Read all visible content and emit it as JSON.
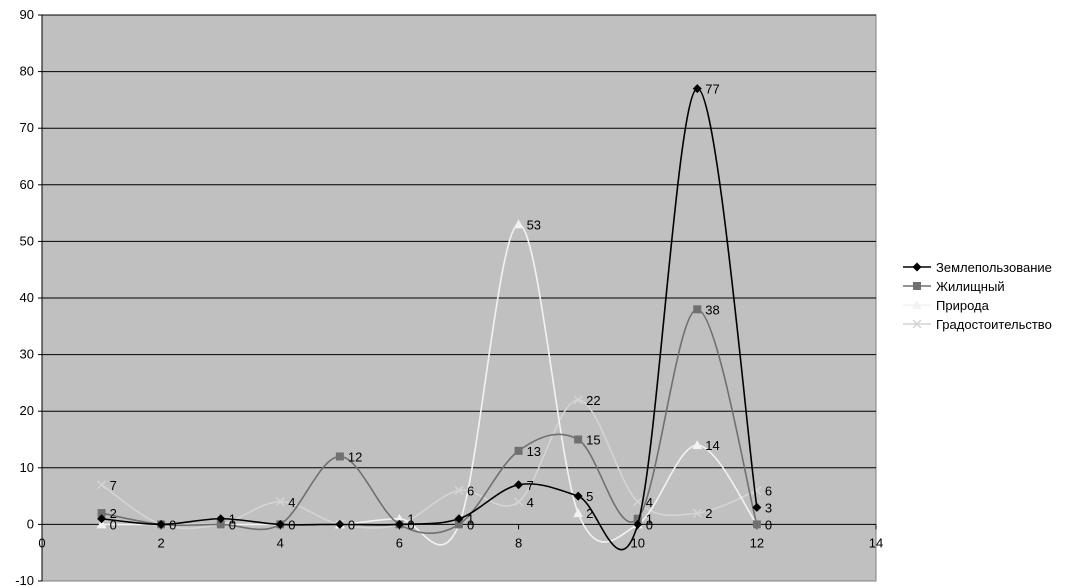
{
  "chart_data": {
    "type": "scatter",
    "xlim": [
      0,
      14
    ],
    "ylim": [
      -10,
      90
    ],
    "xticks": [
      0,
      2,
      4,
      6,
      8,
      10,
      12,
      14
    ],
    "yticks": [
      -10,
      0,
      10,
      20,
      30,
      40,
      50,
      60,
      70,
      80,
      90
    ],
    "grid": "horizontal",
    "legend": "right",
    "plot_background": "#c0c0c0",
    "series": [
      {
        "name": "Землепользование",
        "color": "#000000",
        "marker": "diamond",
        "x": [
          1,
          2,
          3,
          4,
          5,
          6,
          7,
          8,
          9,
          10,
          11,
          12
        ],
        "y": [
          1,
          0,
          1,
          0,
          0,
          0,
          1,
          7,
          5,
          0,
          77,
          3
        ]
      },
      {
        "name": "Жилищный",
        "color": "#707070",
        "marker": "square",
        "x": [
          1,
          2,
          3,
          4,
          5,
          6,
          7,
          8,
          9,
          10,
          11,
          12
        ],
        "y": [
          2,
          0,
          0,
          0,
          12,
          0,
          0,
          13,
          15,
          1,
          38,
          0
        ]
      },
      {
        "name": "Природа",
        "color": "#f2f2f2",
        "marker": "triangle",
        "x": [
          1,
          2,
          3,
          4,
          5,
          6,
          7,
          8,
          9,
          10,
          11,
          12
        ],
        "y": [
          0,
          0,
          0,
          0,
          0,
          1,
          0,
          53,
          2,
          0,
          14,
          0
        ]
      },
      {
        "name": "Градостоительство",
        "color": "#d4d4d4",
        "marker": "x",
        "x": [
          1,
          2,
          3,
          4,
          5,
          6,
          7,
          8,
          9,
          10,
          11,
          12
        ],
        "y": [
          7,
          0,
          0,
          4,
          0,
          0,
          6,
          4,
          22,
          4,
          2,
          6
        ]
      }
    ],
    "data_labels": [
      {
        "x": 1,
        "y": 7,
        "text": "7"
      },
      {
        "x": 1,
        "y": 2,
        "text": "2"
      },
      {
        "x": 1,
        "y": 0,
        "text": "0"
      },
      {
        "x": 2,
        "y": 0,
        "text": "0"
      },
      {
        "x": 3,
        "y": 1,
        "text": "1"
      },
      {
        "x": 3,
        "y": 0,
        "text": "0"
      },
      {
        "x": 4,
        "y": 4,
        "text": "4"
      },
      {
        "x": 4,
        "y": 0,
        "text": "0"
      },
      {
        "x": 5,
        "y": 12,
        "text": "12"
      },
      {
        "x": 5,
        "y": 0,
        "text": "0"
      },
      {
        "x": 6,
        "y": 1,
        "text": "1"
      },
      {
        "x": 6,
        "y": 0,
        "text": "0"
      },
      {
        "x": 7,
        "y": 6,
        "text": "6"
      },
      {
        "x": 7,
        "y": 1,
        "text": "1"
      },
      {
        "x": 7,
        "y": 0,
        "text": "0"
      },
      {
        "x": 8,
        "y": 53,
        "text": "53"
      },
      {
        "x": 8,
        "y": 13,
        "text": "13"
      },
      {
        "x": 8,
        "y": 7,
        "text": "7"
      },
      {
        "x": 8,
        "y": 4,
        "text": "4"
      },
      {
        "x": 9,
        "y": 22,
        "text": "22"
      },
      {
        "x": 9,
        "y": 15,
        "text": "15"
      },
      {
        "x": 9,
        "y": 5,
        "text": "5"
      },
      {
        "x": 9,
        "y": 2,
        "text": "2"
      },
      {
        "x": 10,
        "y": 4,
        "text": "4"
      },
      {
        "x": 10,
        "y": 1,
        "text": "1"
      },
      {
        "x": 10,
        "y": 0,
        "text": "0"
      },
      {
        "x": 11,
        "y": 77,
        "text": "77"
      },
      {
        "x": 11,
        "y": 38,
        "text": "38"
      },
      {
        "x": 11,
        "y": 14,
        "text": "14"
      },
      {
        "x": 11,
        "y": 2,
        "text": "2"
      },
      {
        "x": 12,
        "y": 6,
        "text": "6"
      },
      {
        "x": 12,
        "y": 3,
        "text": "3"
      },
      {
        "x": 12,
        "y": 0,
        "text": "0"
      }
    ]
  }
}
